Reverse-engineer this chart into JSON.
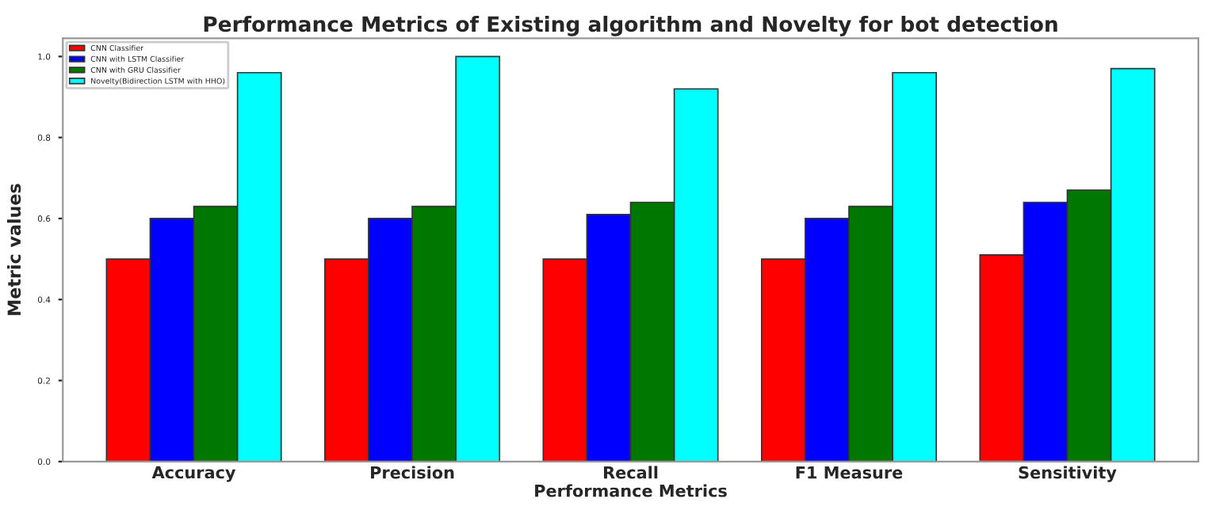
{
  "chart_data": {
    "type": "bar",
    "title": "Performance Metrics of Existing algorithm and Novelty for bot detection",
    "xlabel": "Performance Metrics",
    "ylabel": "Metric values",
    "categories": [
      "Accuracy",
      "Precision",
      "Recall",
      "F1 Measure",
      "Sensitivity"
    ],
    "series": [
      {
        "name": "CNN Classifier",
        "color": "#ff0000",
        "values": [
          0.5,
          0.5,
          0.5,
          0.5,
          0.51
        ]
      },
      {
        "name": "CNN with LSTM Classifier",
        "color": "#0000ff",
        "values": [
          0.6,
          0.6,
          0.61,
          0.6,
          0.64
        ]
      },
      {
        "name": "CNN with GRU Classifier",
        "color": "#007800",
        "values": [
          0.63,
          0.63,
          0.64,
          0.63,
          0.67
        ]
      },
      {
        "name": "Novelty(Bidirection LSTM with HHO)",
        "color": "#00ffff",
        "values": [
          0.96,
          1.0,
          0.92,
          0.96,
          0.97
        ]
      }
    ],
    "ylim": [
      0,
      1.045
    ],
    "yticks": [
      {
        "value": 0,
        "label": "0.0"
      },
      {
        "value": 0.2,
        "label": "0.2"
      },
      {
        "value": 0.4,
        "label": "0.4"
      },
      {
        "value": 0.6,
        "label": "0.6"
      },
      {
        "value": 0.8,
        "label": "0.8"
      },
      {
        "value": 1.0,
        "label": "1.0"
      }
    ],
    "legend": "top left",
    "grid": false
  }
}
